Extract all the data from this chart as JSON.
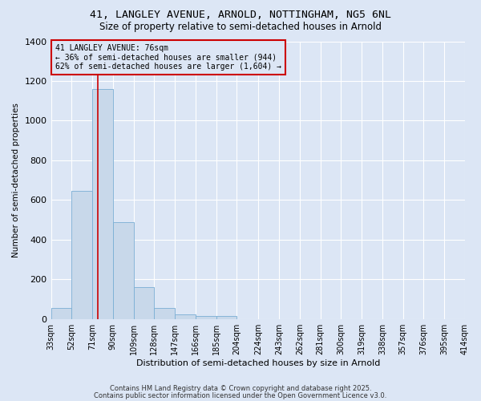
{
  "title1": "41, LANGLEY AVENUE, ARNOLD, NOTTINGHAM, NG5 6NL",
  "title2": "Size of property relative to semi-detached houses in Arnold",
  "xlabel": "Distribution of semi-detached houses by size in Arnold",
  "ylabel": "Number of semi-detached properties",
  "bin_edges": [
    33,
    52,
    71,
    90,
    109,
    128,
    147,
    166,
    185,
    204,
    224,
    243,
    262,
    281,
    300,
    319,
    338,
    357,
    376,
    395,
    414
  ],
  "bar_heights": [
    55,
    645,
    1160,
    490,
    160,
    55,
    25,
    15,
    15,
    0,
    0,
    0,
    0,
    0,
    0,
    0,
    0,
    0,
    0,
    0
  ],
  "bar_color": "#c8d8ea",
  "bar_edge_color": "#7aaed4",
  "property_size": 76,
  "property_line_color": "#cc0000",
  "annotation_title": "41 LANGLEY AVENUE: 76sqm",
  "annotation_line1": "← 36% of semi-detached houses are smaller (944)",
  "annotation_line2": "62% of semi-detached houses are larger (1,604) →",
  "annotation_box_color": "#cc0000",
  "ylim": [
    0,
    1400
  ],
  "yticks": [
    0,
    200,
    400,
    600,
    800,
    1000,
    1200,
    1400
  ],
  "bg_color": "#dce6f5",
  "grid_color": "#ffffff",
  "footer1": "Contains HM Land Registry data © Crown copyright and database right 2025.",
  "footer2": "Contains public sector information licensed under the Open Government Licence v3.0."
}
